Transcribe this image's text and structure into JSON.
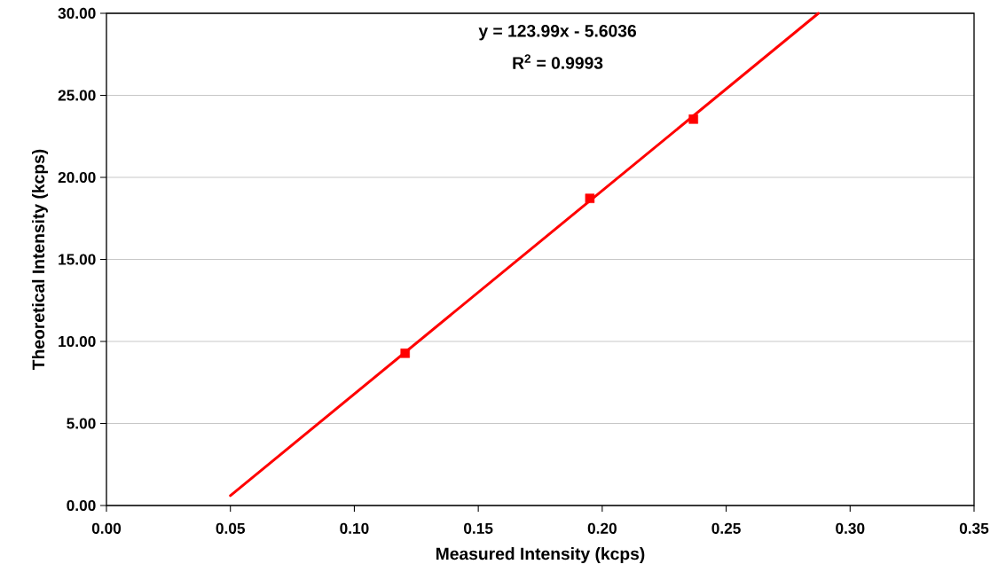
{
  "chart_data": {
    "type": "scatter",
    "xlabel": "Measured Intensity (kcps)",
    "ylabel": "Theoretical Intensity (kcps)",
    "annotations": [
      "y = 123.99x - 5.6036",
      "R$^{2}$ = 0.9993"
    ],
    "series": [
      {
        "color": "#ff0000",
        "marker": "square",
        "x": [
          0.1205,
          0.195,
          0.2368
        ],
        "values": [
          9.28,
          18.72,
          23.55
        ]
      },
      {
        "type": "line",
        "color": "#ff0000",
        "marker": "none",
        "line_style": "solid",
        "x": [
          0.05,
          0.2872
        ],
        "values": [
          0.6,
          30
        ]
      }
    ],
    "xlim": [
      0,
      0.35
    ],
    "ylim": [
      0,
      30
    ],
    "xticks": [
      {
        "value": 0,
        "label": "0.00"
      },
      {
        "value": 0.05,
        "label": "0.05"
      },
      {
        "value": 0.1,
        "label": "0.10"
      },
      {
        "value": 0.15,
        "label": "0.15"
      },
      {
        "value": 0.2,
        "label": "0.20"
      },
      {
        "value": 0.25,
        "label": "0.25"
      },
      {
        "value": 0.3,
        "label": "0.30"
      },
      {
        "value": 0.35,
        "label": "0.35"
      }
    ],
    "yticks": [
      {
        "value": 0,
        "label": "0.00"
      },
      {
        "value": 5,
        "label": "5.00"
      },
      {
        "value": 10,
        "label": "10.00"
      },
      {
        "value": 15,
        "label": "15.00"
      },
      {
        "value": 20,
        "label": "20.00"
      },
      {
        "value": 25,
        "label": "25.00"
      },
      {
        "value": 30,
        "label": "30.00"
      }
    ],
    "grid": "y"
  }
}
